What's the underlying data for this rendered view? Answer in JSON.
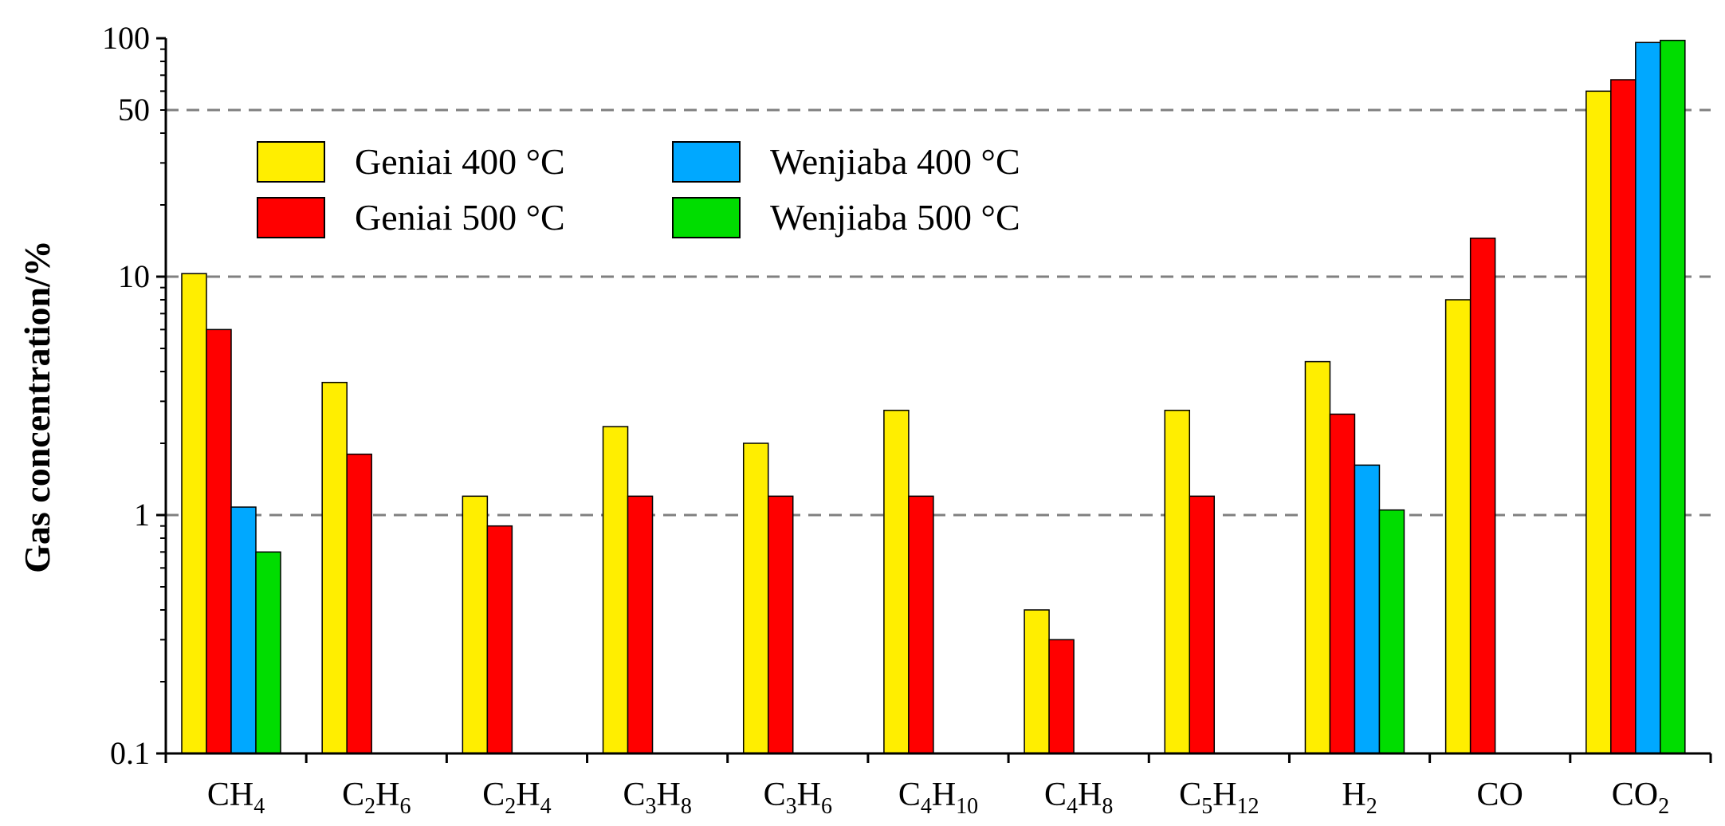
{
  "chart_data": {
    "type": "bar",
    "yscale": "log",
    "title": "",
    "xlabel": "",
    "ylabel": "Gas concentration/%",
    "ylim": [
      0.1,
      100
    ],
    "yticks": [
      {
        "value": 0.1,
        "label": "0.1"
      },
      {
        "value": 1,
        "label": "1"
      },
      {
        "value": 10,
        "label": "10"
      },
      {
        "value": 50,
        "label": "50"
      },
      {
        "value": 100,
        "label": "100"
      }
    ],
    "gridlines": [
      1,
      10,
      50
    ],
    "categories": [
      {
        "base": "CH",
        "sub": "4"
      },
      {
        "base": "C",
        "sub": "2",
        "base2": "H",
        "sub2": "6"
      },
      {
        "base": "C",
        "sub": "2",
        "base2": "H",
        "sub2": "4"
      },
      {
        "base": "C",
        "sub": "3",
        "base2": "H",
        "sub2": "8"
      },
      {
        "base": "C",
        "sub": "3",
        "base2": "H",
        "sub2": "6"
      },
      {
        "base": "C",
        "sub": "4",
        "base2": "H",
        "sub2": "10"
      },
      {
        "base": "C",
        "sub": "4",
        "base2": "H",
        "sub2": "8"
      },
      {
        "base": "C",
        "sub": "5",
        "base2": "H",
        "sub2": "12"
      },
      {
        "base": "H",
        "sub": "2"
      },
      {
        "base": "CO",
        "sub": ""
      },
      {
        "base": "CO",
        "sub": "2"
      }
    ],
    "series": [
      {
        "name": "Geniai 400 °C",
        "color": "#FFEE00",
        "values": [
          10.3,
          3.6,
          1.2,
          2.35,
          2.0,
          2.75,
          0.4,
          2.75,
          4.4,
          8.0,
          60
        ]
      },
      {
        "name": "Geniai 500 °C",
        "color": "#FF0000",
        "values": [
          6.0,
          1.8,
          0.9,
          1.2,
          1.2,
          1.2,
          0.3,
          1.2,
          2.65,
          14.5,
          67
        ]
      },
      {
        "name": "Wenjiaba 400 °C",
        "color": "#00A8FF",
        "values": [
          1.08,
          null,
          null,
          null,
          null,
          null,
          null,
          null,
          1.62,
          null,
          96
        ]
      },
      {
        "name": "Wenjiaba 500 °C",
        "color": "#00DD00",
        "values": [
          0.7,
          null,
          null,
          null,
          null,
          null,
          null,
          null,
          1.05,
          null,
          98
        ]
      }
    ],
    "legend": {
      "position": "top-left",
      "columns": 2
    }
  }
}
